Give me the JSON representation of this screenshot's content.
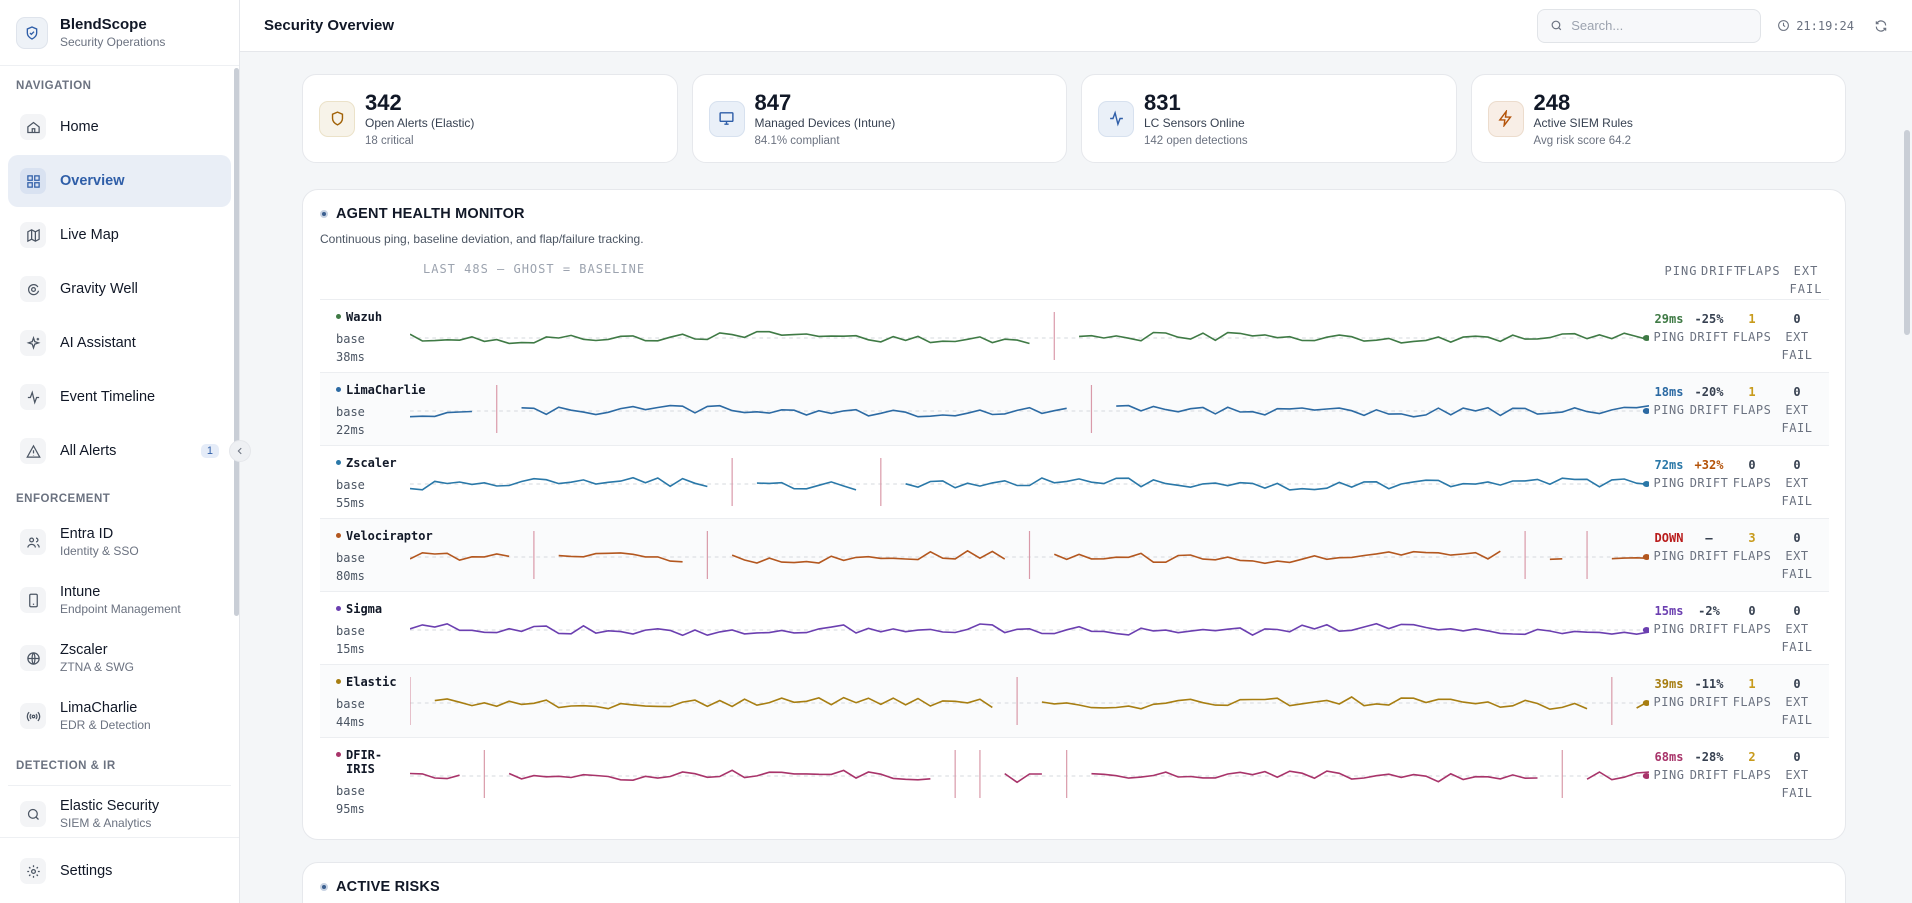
{
  "brand": {
    "name": "BlendScope",
    "subtitle": "Security Operations"
  },
  "sidebar": {
    "sections": {
      "navigation": "NAVIGATION",
      "enforcement": "ENFORCEMENT",
      "detection": "DETECTION & IR"
    },
    "nav": [
      {
        "label": "Home",
        "icon": "home-icon"
      },
      {
        "label": "Overview",
        "icon": "grid-icon",
        "active": true
      },
      {
        "label": "Live Map",
        "icon": "map-icon"
      },
      {
        "label": "Gravity Well",
        "icon": "orbit-icon"
      },
      {
        "label": "AI Assistant",
        "icon": "sparkles-icon"
      },
      {
        "label": "Event Timeline",
        "icon": "activity-icon"
      },
      {
        "label": "All Alerts",
        "icon": "alert-triangle-icon",
        "badge": "1"
      }
    ],
    "enforcement": [
      {
        "label": "Entra ID",
        "sub": "Identity & SSO",
        "icon": "users-icon"
      },
      {
        "label": "Intune",
        "sub": "Endpoint Management",
        "icon": "smartphone-icon"
      },
      {
        "label": "Zscaler",
        "sub": "ZTNA & SWG",
        "icon": "globe-icon"
      },
      {
        "label": "LimaCharlie",
        "sub": "EDR & Detection",
        "icon": "radio-icon"
      }
    ],
    "detection": [
      {
        "label": "Elastic Security",
        "sub": "SIEM & Analytics",
        "icon": "search-icon"
      }
    ],
    "settings": {
      "label": "Settings",
      "icon": "gear-icon"
    }
  },
  "topbar": {
    "title": "Security Overview",
    "search_placeholder": "Search...",
    "time": "21:19:24"
  },
  "stats": [
    {
      "value": "342",
      "label": "Open Alerts (Elastic)",
      "sub": "18 critical",
      "icon": "shield-icon",
      "color": "#a16207"
    },
    {
      "value": "847",
      "label": "Managed Devices (Intune)",
      "sub": "84.1% compliant",
      "icon": "monitor-icon",
      "color": "#2f5ea8"
    },
    {
      "value": "831",
      "label": "LC Sensors Online",
      "sub": "142 open detections",
      "icon": "pulse-icon",
      "color": "#2f5ea8"
    },
    {
      "value": "248",
      "label": "Active SIEM Rules",
      "sub": "Avg risk score 64.2",
      "icon": "zap-icon",
      "color": "#b45309"
    }
  ],
  "monitor": {
    "title": "AGENT HEALTH MONITOR",
    "subtitle": "Continuous ping, baseline deviation, and flap/failure tracking.",
    "header_left": "LAST 48S — GHOST = BASELINE",
    "header_cols": [
      "PING",
      "DRIFT",
      "FLAPS",
      "EXT FAIL"
    ],
    "label_ping": "PING",
    "label_drift": "DRIFT",
    "label_flaps": "FLAPS",
    "label_ext": "EXT",
    "label_fail": "FAIL",
    "agents": [
      {
        "name": "Wazuh",
        "base_label": "base",
        "base": "38ms",
        "ping": "29ms",
        "drift": "-25%",
        "flaps": "1",
        "ext_fail": "0",
        "color": "#3f7a45",
        "ping_color": "#3f7a45",
        "drift_color": "#374151"
      },
      {
        "name": "LimaCharlie",
        "base_label": "base",
        "base": "22ms",
        "ping": "18ms",
        "drift": "-20%",
        "flaps": "1",
        "ext_fail": "0",
        "color": "#2c6aa3",
        "ping_color": "#2c6aa3",
        "drift_color": "#374151"
      },
      {
        "name": "Zscaler",
        "base_label": "base",
        "base": "55ms",
        "ping": "72ms",
        "drift": "+32%",
        "flaps": "0",
        "ext_fail": "0",
        "color": "#2a78a8",
        "ping_color": "#2a78a8",
        "drift_color": "#b45309"
      },
      {
        "name": "Velociraptor",
        "base_label": "base",
        "base": "80ms",
        "ping": "DOWN",
        "drift": "—",
        "flaps": "3",
        "ext_fail": "0",
        "color": "#b3571f",
        "ping_color": "#b91c1c",
        "drift_color": "#374151"
      },
      {
        "name": "Sigma",
        "base_label": "base",
        "base": "15ms",
        "ping": "15ms",
        "drift": "-2%",
        "flaps": "0",
        "ext_fail": "0",
        "color": "#6b3fb0",
        "ping_color": "#6b3fb0",
        "drift_color": "#374151"
      },
      {
        "name": "Elastic",
        "base_label": "base",
        "base": "44ms",
        "ping": "39ms",
        "drift": "-11%",
        "flaps": "1",
        "ext_fail": "0",
        "color": "#a77e12",
        "ping_color": "#a77e12",
        "drift_color": "#374151"
      },
      {
        "name": "DFIR-IRIS",
        "base_label": "base",
        "base": "95ms",
        "ping": "68ms",
        "drift": "-28%",
        "flaps": "2",
        "ext_fail": "0",
        "color": "#a8346a",
        "ping_color": "#a8346a",
        "drift_color": "#374151"
      }
    ]
  },
  "risks": {
    "title": "ACTIVE RISKS"
  },
  "colors": {
    "accent": "#2f5ea8",
    "flap": "#c89b1c",
    "gap_marker": "#d99aa9"
  }
}
